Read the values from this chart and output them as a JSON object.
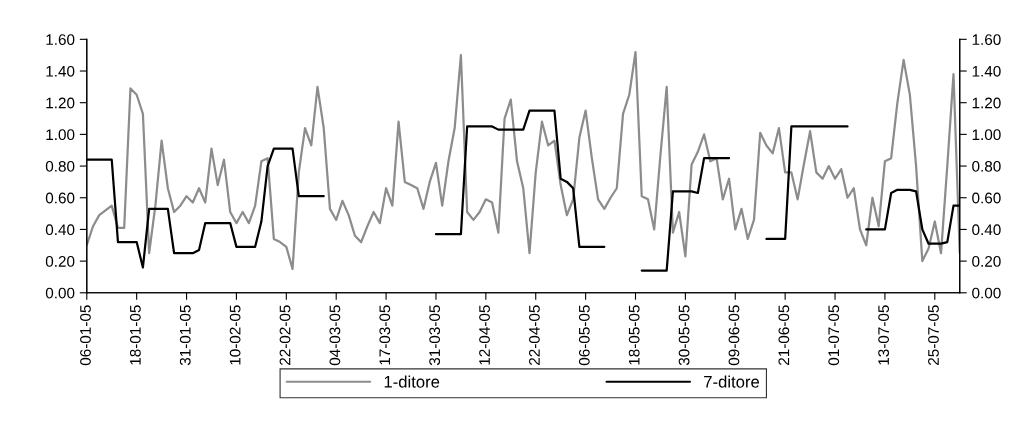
{
  "chart_data": {
    "type": "line",
    "categories": [
      "06-01-05",
      null,
      null,
      null,
      null,
      null,
      null,
      null,
      "18-01-05",
      null,
      null,
      null,
      null,
      null,
      null,
      null,
      "31-01-05",
      null,
      null,
      null,
      null,
      null,
      null,
      null,
      "10-02-05",
      null,
      null,
      null,
      null,
      null,
      null,
      null,
      "22-02-05",
      null,
      null,
      null,
      null,
      null,
      null,
      null,
      "04-03-05",
      null,
      null,
      null,
      null,
      null,
      null,
      null,
      "17-03-05",
      null,
      null,
      null,
      null,
      null,
      null,
      null,
      "31-03-05",
      null,
      null,
      null,
      null,
      null,
      null,
      null,
      "12-04-05",
      null,
      null,
      null,
      null,
      null,
      null,
      null,
      "22-04-05",
      null,
      null,
      null,
      null,
      null,
      null,
      null,
      "06-05-05",
      null,
      null,
      null,
      null,
      null,
      null,
      null,
      "18-05-05",
      null,
      null,
      null,
      null,
      null,
      null,
      null,
      "30-05-05",
      null,
      null,
      null,
      null,
      null,
      null,
      null,
      "09-06-05",
      null,
      null,
      null,
      null,
      null,
      null,
      null,
      "21-06-05",
      null,
      null,
      null,
      null,
      null,
      null,
      null,
      "01-07-05",
      null,
      null,
      null,
      null,
      null,
      null,
      null,
      "13-07-05",
      null,
      null,
      null,
      null,
      null,
      null,
      null,
      "25-07-05",
      null,
      null,
      null,
      null
    ],
    "series": [
      {
        "name": "1-ditore",
        "color": "#8c8c8c",
        "values": [
          0.3,
          0.42,
          0.49,
          0.52,
          0.55,
          0.41,
          0.41,
          1.29,
          1.25,
          1.13,
          0.25,
          0.55,
          0.96,
          0.66,
          0.51,
          0.55,
          0.61,
          0.57,
          0.66,
          0.57,
          0.91,
          0.68,
          0.84,
          0.51,
          0.44,
          0.51,
          0.44,
          0.55,
          0.83,
          0.85,
          0.34,
          0.32,
          0.29,
          0.15,
          0.76,
          1.04,
          0.93,
          1.3,
          1.04,
          0.53,
          0.46,
          0.58,
          0.49,
          0.36,
          0.32,
          0.42,
          0.51,
          0.44,
          0.66,
          0.55,
          1.08,
          0.7,
          0.68,
          0.66,
          0.53,
          0.7,
          0.82,
          0.55,
          0.83,
          1.04,
          1.5,
          0.51,
          0.46,
          0.51,
          0.59,
          0.57,
          0.38,
          1.1,
          1.22,
          0.83,
          0.66,
          0.25,
          0.76,
          1.08,
          0.93,
          0.96,
          0.68,
          0.49,
          0.59,
          0.98,
          1.15,
          0.85,
          0.59,
          0.53,
          0.6,
          0.66,
          1.13,
          1.25,
          1.52,
          0.61,
          0.59,
          0.4,
          0.87,
          1.3,
          0.38,
          0.51,
          0.23,
          0.81,
          0.89,
          1.0,
          0.83,
          0.85,
          0.59,
          0.72,
          0.4,
          0.53,
          0.34,
          0.46,
          1.01,
          0.93,
          0.88,
          1.04,
          0.76,
          0.76,
          0.59,
          0.81,
          1.02,
          0.76,
          0.72,
          0.8,
          0.72,
          0.78,
          0.6,
          0.66,
          0.4,
          0.3,
          0.6,
          0.42,
          0.83,
          0.85,
          1.2,
          1.47,
          1.25,
          0.8,
          0.2,
          0.28,
          0.45,
          0.25,
          0.8,
          1.38,
          0.25
        ]
      },
      {
        "name": "7-ditore",
        "color": "#000000",
        "values": [
          0.84,
          0.84,
          0.84,
          0.84,
          0.84,
          0.32,
          0.32,
          0.32,
          0.32,
          0.16,
          0.53,
          0.53,
          0.53,
          0.53,
          0.25,
          0.25,
          0.25,
          0.25,
          0.27,
          0.44,
          0.44,
          0.44,
          0.44,
          0.44,
          0.29,
          0.29,
          0.29,
          0.29,
          0.45,
          0.8,
          0.91,
          0.91,
          0.91,
          0.91,
          0.61,
          0.61,
          0.61,
          0.61,
          0.61,
          null,
          null,
          null,
          null,
          null,
          null,
          null,
          null,
          null,
          null,
          null,
          null,
          null,
          null,
          null,
          null,
          null,
          0.37,
          0.37,
          0.37,
          0.37,
          0.37,
          1.05,
          1.05,
          1.05,
          1.05,
          1.05,
          1.03,
          1.03,
          1.03,
          1.03,
          1.03,
          1.15,
          1.15,
          1.15,
          1.15,
          1.15,
          0.72,
          0.7,
          0.66,
          0.29,
          0.29,
          0.29,
          0.29,
          0.29,
          null,
          null,
          null,
          null,
          null,
          0.14,
          0.14,
          0.14,
          0.14,
          0.14,
          0.64,
          0.64,
          0.64,
          0.64,
          0.63,
          0.85,
          0.85,
          0.85,
          0.85,
          0.85,
          null,
          null,
          null,
          null,
          null,
          0.34,
          0.34,
          0.34,
          0.34,
          1.05,
          1.05,
          1.05,
          1.05,
          1.05,
          1.05,
          1.05,
          1.05,
          1.05,
          1.05,
          null,
          null,
          0.4,
          0.4,
          0.4,
          0.4,
          0.63,
          0.65,
          0.65,
          0.65,
          0.64,
          0.4,
          0.31,
          0.31,
          0.31,
          0.32,
          0.55,
          0.55
        ]
      }
    ],
    "ylim": [
      0,
      1.6
    ],
    "yticks": [
      {
        "value": 0,
        "label": "0.00"
      },
      {
        "value": 0.2,
        "label": "0.20"
      },
      {
        "value": 0.4,
        "label": "0.40"
      },
      {
        "value": 0.6,
        "label": "0.60"
      },
      {
        "value": 0.8,
        "label": "0.80"
      },
      {
        "value": 1.0,
        "label": "1.00"
      },
      {
        "value": 1.2,
        "label": "1.20"
      },
      {
        "value": 1.4,
        "label": "1.40"
      },
      {
        "value": 1.6,
        "label": "1.60"
      }
    ],
    "y2lim": [
      0,
      1.6
    ],
    "y2ticks": [
      {
        "value": 0,
        "label": "0.00"
      },
      {
        "value": 0.2,
        "label": "0.20"
      },
      {
        "value": 0.4,
        "label": "0.40"
      },
      {
        "value": 0.6,
        "label": "0.60"
      },
      {
        "value": 0.8,
        "label": "0.80"
      },
      {
        "value": 1.0,
        "label": "1.00"
      },
      {
        "value": 1.2,
        "label": "1.20"
      },
      {
        "value": 1.4,
        "label": "1.40"
      },
      {
        "value": 1.6,
        "label": "1.60"
      }
    ],
    "legend": "bottom"
  }
}
